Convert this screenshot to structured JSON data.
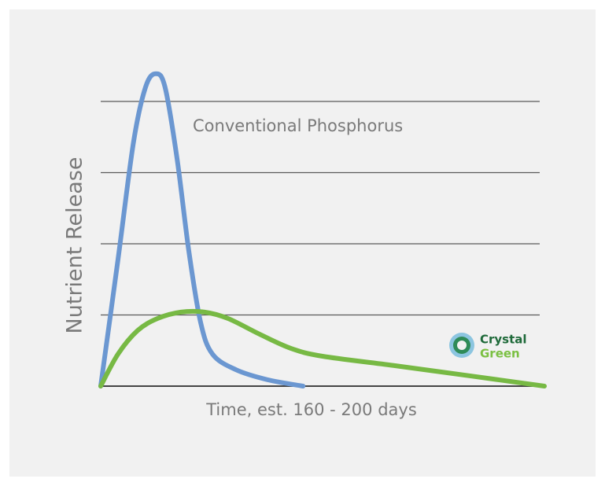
{
  "chart_data": {
    "type": "line",
    "ylabel": "Nutrient Release",
    "xlabel": "Time, est. 160 - 200 days",
    "xlim": [
      0,
      100
    ],
    "ylim": [
      0,
      4.5
    ],
    "yticks": [
      0,
      1,
      2,
      3,
      4
    ],
    "grid": true,
    "series": [
      {
        "name": "Conventional Phosphorus",
        "color": "#6b97d1",
        "x": [
          0,
          3.9,
          7.4,
          10.1,
          12.4,
          14.5,
          17.2,
          19.9,
          22.5,
          25.2,
          30.5,
          37.6,
          45.6
        ],
        "values": [
          0,
          1.78,
          3.43,
          4.2,
          4.39,
          4.2,
          3.2,
          1.88,
          0.9,
          0.45,
          0.23,
          0.09,
          0
        ]
      },
      {
        "color": "#77b944",
        "x": [
          0,
          3.9,
          8.3,
          12.8,
          18.1,
          23.4,
          28.7,
          35.8,
          42.9,
          50,
          66,
          83.7,
          100
        ],
        "values": [
          0,
          0.45,
          0.78,
          0.95,
          1.04,
          1.04,
          0.95,
          0.73,
          0.53,
          0.42,
          0.29,
          0.14,
          0
        ]
      }
    ],
    "logo": {
      "line1": "Crystal",
      "line2": "Green"
    }
  }
}
